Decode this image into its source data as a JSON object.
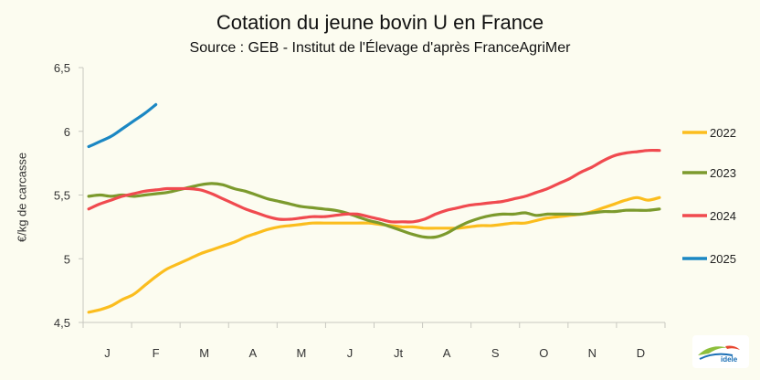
{
  "header": {
    "title": "Cotation du jeune bovin U en France",
    "subtitle": "Source : GEB - Institut de l'Élevage d'après FranceAgriMer"
  },
  "logo": {
    "text": "idele"
  },
  "chart_data": {
    "type": "line",
    "title": "Cotation du jeune bovin U en France",
    "subtitle": "Source : GEB - Institut de l'Élevage d'après FranceAgriMer",
    "ylabel": "€/kg de carcasse",
    "xlabel": "",
    "ylim": [
      4.5,
      6.5
    ],
    "yticks": [
      "4,5",
      "5",
      "5,5",
      "6",
      "6,5"
    ],
    "yticks_values": [
      4.5,
      5,
      5.5,
      6,
      6.5
    ],
    "x_categories": [
      "J",
      "F",
      "M",
      "A",
      "M",
      "J",
      "Jt",
      "A",
      "S",
      "O",
      "N",
      "D"
    ],
    "x_unit": "week of year",
    "grid": false,
    "legend_position": "right",
    "series": [
      {
        "name": "2022",
        "color": "#fbbd1e",
        "x": [
          1,
          2,
          3,
          4,
          5,
          6,
          7,
          8,
          9,
          10,
          11,
          12,
          13,
          14,
          15,
          16,
          17,
          18,
          19,
          20,
          21,
          22,
          23,
          24,
          25,
          26,
          27,
          28,
          29,
          30,
          31,
          32,
          33,
          34,
          35,
          36,
          37,
          38,
          39,
          40,
          41,
          42,
          43,
          44,
          45,
          46,
          47,
          48,
          49,
          50,
          51,
          52
        ],
        "y": [
          4.58,
          4.6,
          4.63,
          4.68,
          4.72,
          4.79,
          4.86,
          4.92,
          4.96,
          5.0,
          5.04,
          5.07,
          5.1,
          5.13,
          5.17,
          5.2,
          5.23,
          5.25,
          5.26,
          5.27,
          5.28,
          5.28,
          5.28,
          5.28,
          5.28,
          5.28,
          5.27,
          5.26,
          5.25,
          5.25,
          5.24,
          5.24,
          5.24,
          5.24,
          5.25,
          5.26,
          5.26,
          5.27,
          5.28,
          5.28,
          5.3,
          5.32,
          5.33,
          5.34,
          5.35,
          5.37,
          5.4,
          5.43,
          5.46,
          5.48,
          5.46,
          5.48
        ]
      },
      {
        "name": "2023",
        "color": "#7c9a2d",
        "x": [
          1,
          2,
          3,
          4,
          5,
          6,
          7,
          8,
          9,
          10,
          11,
          12,
          13,
          14,
          15,
          16,
          17,
          18,
          19,
          20,
          21,
          22,
          23,
          24,
          25,
          26,
          27,
          28,
          29,
          30,
          31,
          32,
          33,
          34,
          35,
          36,
          37,
          38,
          39,
          40,
          41,
          42,
          43,
          44,
          45,
          46,
          47,
          48,
          49,
          50,
          51,
          52
        ],
        "y": [
          5.49,
          5.5,
          5.49,
          5.5,
          5.49,
          5.5,
          5.51,
          5.52,
          5.54,
          5.56,
          5.58,
          5.59,
          5.58,
          5.55,
          5.53,
          5.5,
          5.47,
          5.45,
          5.43,
          5.41,
          5.4,
          5.39,
          5.38,
          5.36,
          5.33,
          5.3,
          5.28,
          5.25,
          5.22,
          5.19,
          5.17,
          5.17,
          5.2,
          5.25,
          5.29,
          5.32,
          5.34,
          5.35,
          5.35,
          5.36,
          5.34,
          5.35,
          5.35,
          5.35,
          5.35,
          5.36,
          5.37,
          5.37,
          5.38,
          5.38,
          5.38,
          5.39
        ]
      },
      {
        "name": "2024",
        "color": "#f04a4f",
        "x": [
          1,
          2,
          3,
          4,
          5,
          6,
          7,
          8,
          9,
          10,
          11,
          12,
          13,
          14,
          15,
          16,
          17,
          18,
          19,
          20,
          21,
          22,
          23,
          24,
          25,
          26,
          27,
          28,
          29,
          30,
          31,
          32,
          33,
          34,
          35,
          36,
          37,
          38,
          39,
          40,
          41,
          42,
          43,
          44,
          45,
          46,
          47,
          48,
          49,
          50,
          51,
          52
        ],
        "y": [
          5.39,
          5.43,
          5.46,
          5.49,
          5.51,
          5.53,
          5.54,
          5.55,
          5.55,
          5.55,
          5.54,
          5.51,
          5.47,
          5.43,
          5.39,
          5.36,
          5.33,
          5.31,
          5.31,
          5.32,
          5.33,
          5.33,
          5.34,
          5.35,
          5.35,
          5.33,
          5.31,
          5.29,
          5.29,
          5.29,
          5.31,
          5.35,
          5.38,
          5.4,
          5.42,
          5.43,
          5.44,
          5.45,
          5.47,
          5.49,
          5.52,
          5.55,
          5.59,
          5.63,
          5.68,
          5.72,
          5.77,
          5.81,
          5.83,
          5.84,
          5.85,
          5.85
        ]
      },
      {
        "name": "2025",
        "color": "#1b87c3",
        "x": [
          1,
          2,
          3,
          4,
          5,
          6,
          7
        ],
        "y": [
          5.88,
          5.92,
          5.96,
          6.02,
          6.08,
          6.14,
          6.21
        ]
      }
    ]
  }
}
